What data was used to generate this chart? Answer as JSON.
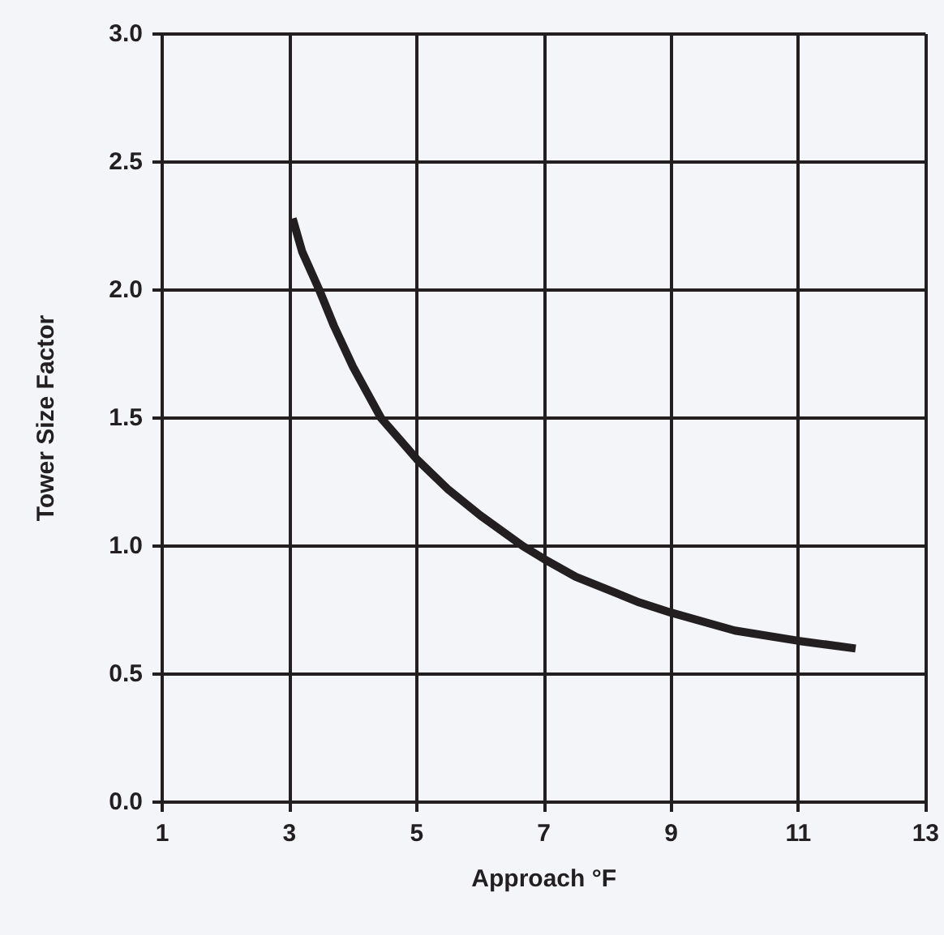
{
  "chart_data": {
    "type": "line",
    "xlabel": "Approach °F",
    "ylabel": "Tower Size Factor",
    "series": [
      {
        "color": "#231f20",
        "x": [
          3.05,
          3.2,
          3.47,
          3.7,
          4,
          4.44,
          5,
          5.5,
          6,
          6.67,
          7,
          7.5,
          8,
          8.5,
          9,
          10,
          11,
          11.9
        ],
        "values": [
          2.28,
          2.15,
          2.0,
          1.86,
          1.7,
          1.5,
          1.34,
          1.22,
          1.12,
          1.0,
          0.95,
          0.88,
          0.83,
          0.78,
          0.74,
          0.67,
          0.63,
          0.6
        ]
      }
    ],
    "xlim": [
      1,
      13
    ],
    "xticks": [
      1,
      3,
      5,
      7,
      9,
      11,
      13
    ],
    "ylim": [
      0,
      3
    ],
    "yticks": [
      {
        "value": 0,
        "label": "0.0"
      },
      {
        "value": 0.5,
        "label": "0.5"
      },
      {
        "value": 1,
        "label": "1.0"
      },
      {
        "value": 1.5,
        "label": "1.5"
      },
      {
        "value": 2,
        "label": "2.0"
      },
      {
        "value": 2.5,
        "label": "2.5"
      },
      {
        "value": 3,
        "label": "3.0"
      }
    ],
    "grid": true,
    "marker": "none",
    "line_style": "solid"
  }
}
